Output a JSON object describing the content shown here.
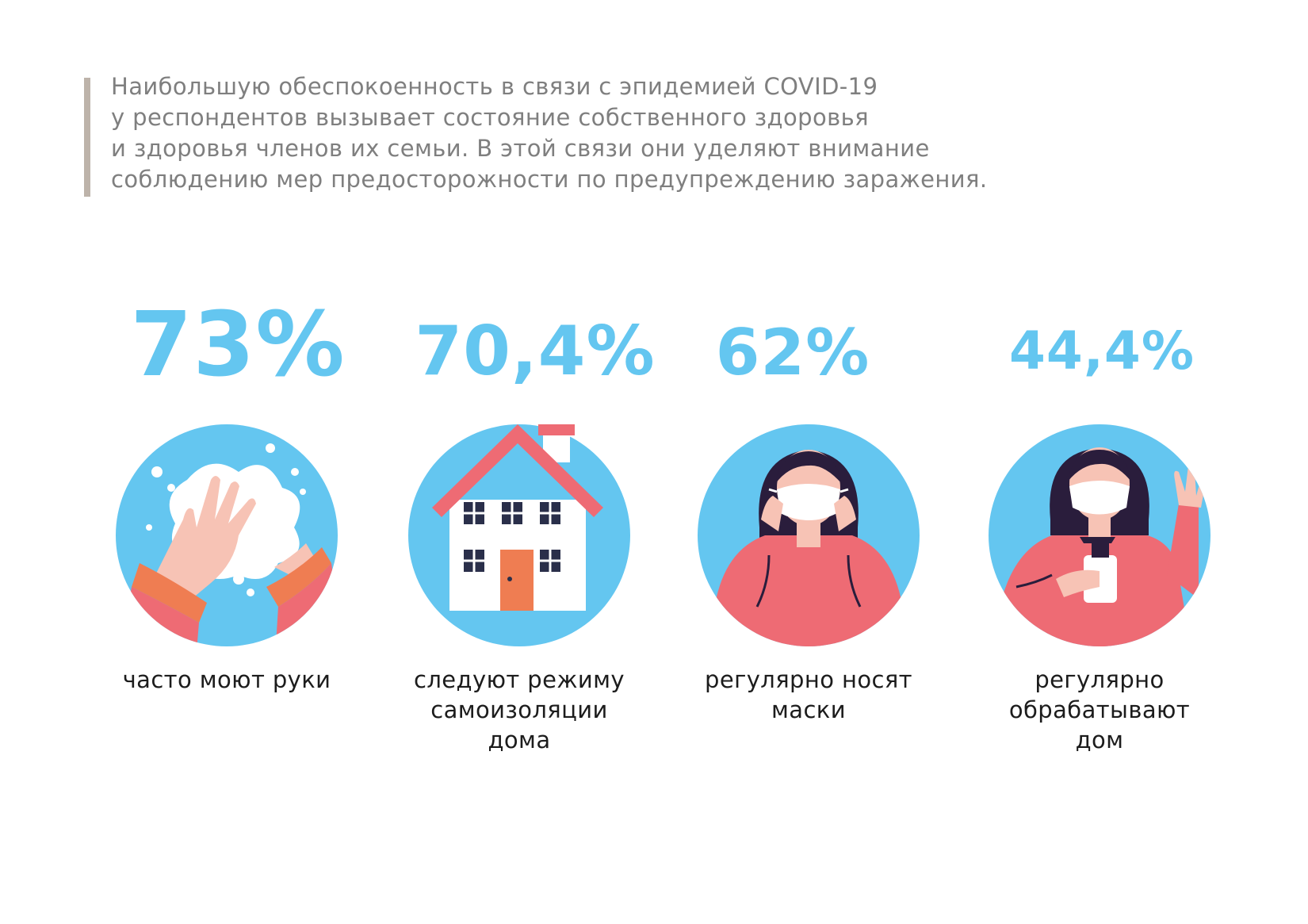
{
  "intro": {
    "lines": [
      "Наибольшую обеспокоенность в связи с эпидемией COVID-19",
      "у респондентов вызывает состояние собственного здоровья",
      "и здоровья членов их семьи. В этой связи они уделяют внимание",
      "соблюдению мер предосторожности по предупреждению заражения."
    ]
  },
  "stats": [
    {
      "value": "73%",
      "icon": "hand-washing-icon",
      "caption_lines": [
        "часто моют руки"
      ]
    },
    {
      "value": "70,4%",
      "icon": "house-icon",
      "caption_lines": [
        "следуют режиму",
        "самоизоляции",
        "дома"
      ]
    },
    {
      "value": "62%",
      "icon": "woman-mask-icon",
      "caption_lines": [
        "регулярно носят",
        "маски"
      ]
    },
    {
      "value": "44,4%",
      "icon": "woman-disinfecting-icon",
      "caption_lines": [
        "регулярно",
        "обрабатывают",
        "дом"
      ]
    }
  ],
  "colors": {
    "accent": "#64c6f0",
    "circle": "#64c6f0",
    "coral": "#ee6b74",
    "orange": "#ef7d52",
    "skin": "#f7c3b5",
    "hair": "#2a1d3c",
    "text": "#1c1c1c",
    "intro_text": "#7f7f7f",
    "bar": "#bdb3aa"
  }
}
